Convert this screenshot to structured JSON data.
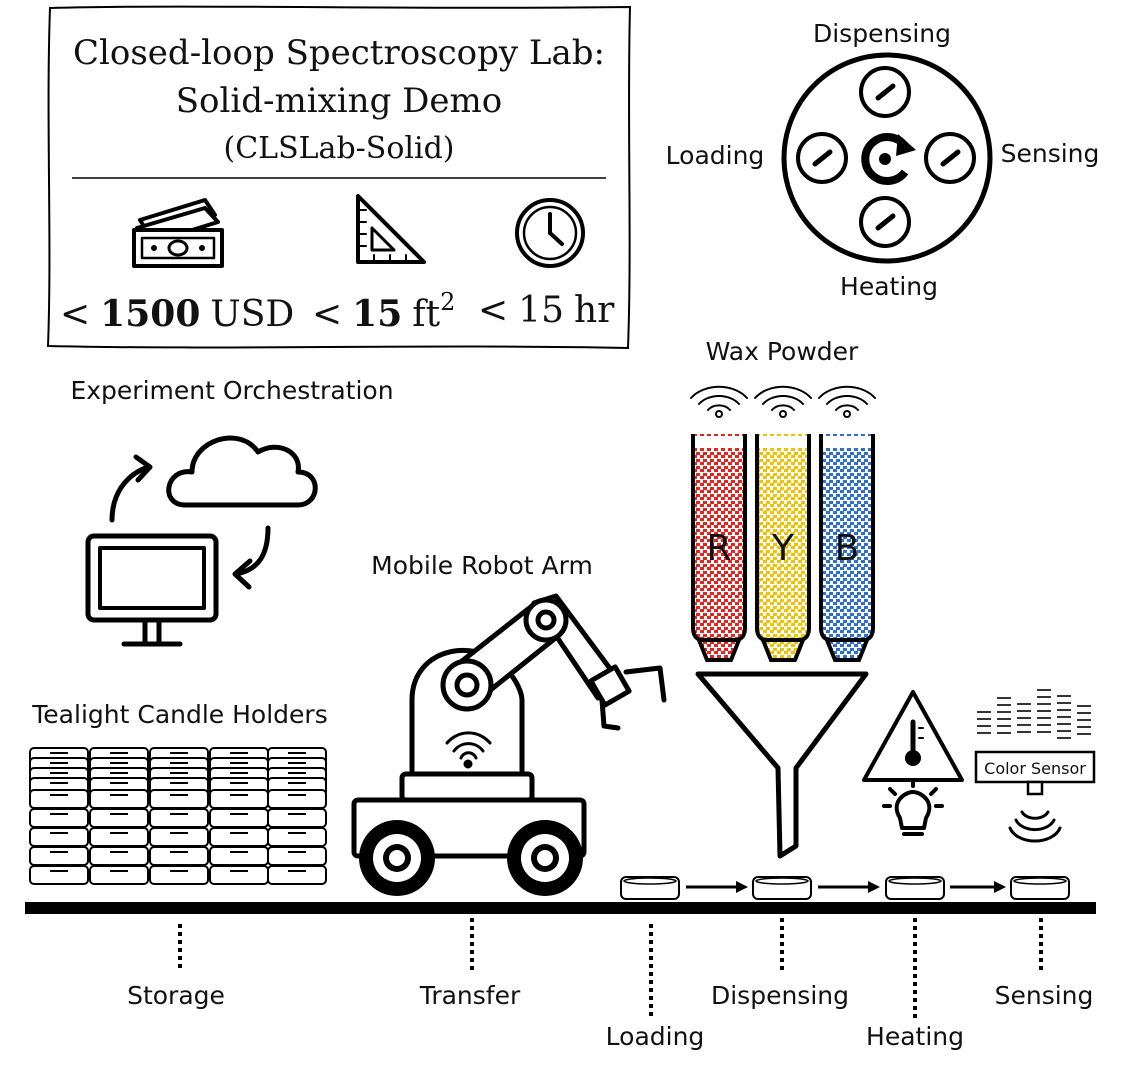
{
  "header_box": {
    "title_line1": "Closed-loop Spectroscopy Lab:",
    "title_line2": "Solid-mixing Demo",
    "title_line3": "(CLSLab-Solid)",
    "cost": {
      "prefix": "<",
      "value": "1500",
      "unit": "USD",
      "icon": "money-icon"
    },
    "area": {
      "prefix": "<",
      "value": "15",
      "unit": "ft",
      "exponent": "2",
      "icon": "set-square-icon"
    },
    "time": {
      "prefix": "<",
      "value": "15",
      "unit": "hr",
      "icon": "clock-icon"
    }
  },
  "carousel": {
    "top": "Dispensing",
    "left": "Loading",
    "right": "Sensing",
    "bottom": "Heating",
    "icon": "rotate-icon"
  },
  "orchestration": {
    "title": "Experiment Orchestration",
    "icons": [
      "cloud-icon",
      "monitor-icon",
      "cycle-arrow-icon"
    ]
  },
  "robot": {
    "title": "Mobile Robot Arm",
    "icons": [
      "robot-arm-icon",
      "wifi-icon"
    ]
  },
  "wax": {
    "title": "Wax Powder",
    "tubes": [
      {
        "letter": "R",
        "color": "#e8231e"
      },
      {
        "letter": "Y",
        "color": "#f2c200"
      },
      {
        "letter": "B",
        "color": "#2f6fd0"
      }
    ]
  },
  "storage_title": "Tealight Candle Holders",
  "sensor": {
    "label": "Color Sensor",
    "icon": "color-sensor-icon"
  },
  "heater_icons": [
    "warning-thermometer-icon",
    "lamp-icon"
  ],
  "stations": {
    "storage": "Storage",
    "transfer": "Transfer",
    "loading": "Loading",
    "dispensing": "Dispensing",
    "heating": "Heating",
    "sensing": "Sensing"
  }
}
